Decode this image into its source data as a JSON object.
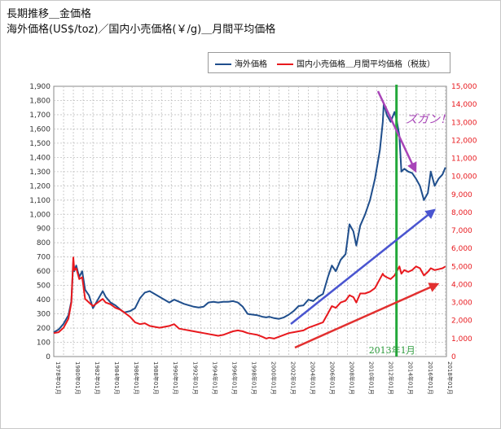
{
  "titles": {
    "line1": "長期推移＿金価格",
    "line2": "海外価格(US$/toz)／国内小売価格(￥/g)＿月間平均価格"
  },
  "legend": [
    {
      "label": "海外価格",
      "color": "#1f4e8c"
    },
    {
      "label": "国内小売価格＿月間平均価格（税抜）",
      "color": "#e8191e"
    }
  ],
  "annotations": {
    "zugan": "ズガン！",
    "marker_label": "2013年1月"
  },
  "colors": {
    "overseas": "#1f4e8c",
    "domestic": "#e8191e",
    "marker": "#22a83a",
    "arrow_blue": "#4a55d0",
    "arrow_red": "#e23030",
    "arrow_purple": "#a845b8",
    "grid": "#c0c0c0"
  },
  "chart_data": {
    "type": "line",
    "x_tick_labels": [
      "1978年01月",
      "1980年01月",
      "1982年01月",
      "1984年01月",
      "1986年01月",
      "1988年01月",
      "1990年01月",
      "1992年01月",
      "1994年01月",
      "1996年01月",
      "1998年01月",
      "2000年01月",
      "2002年01月",
      "2004年01月",
      "2006年01月",
      "2008年01月",
      "2010年01月",
      "2012年01月",
      "2014年01月",
      "2016年01月",
      "2018年01月"
    ],
    "xlim": [
      1978.0,
      2018.1
    ],
    "y_left": {
      "ylim": [
        0,
        1900
      ],
      "ticks": [
        0,
        100,
        200,
        300,
        400,
        500,
        600,
        700,
        800,
        900,
        "1,000",
        "1,100",
        "1,200",
        "1,300",
        "1,400",
        "1,500",
        "1,600",
        "1,700",
        "1,800",
        "1,900"
      ]
    },
    "y_right": {
      "ylim": [
        0,
        15000
      ],
      "ticks": [
        "0",
        "1,000",
        "2,000",
        "3,000",
        "4,000",
        "5,000",
        "6,000",
        "7,000",
        "8,000",
        "9,000",
        "10,000",
        "11,000",
        "12,000",
        "13,000",
        "14,000",
        "15,000"
      ]
    },
    "series": [
      {
        "axis": "left",
        "x": [
          1978.0,
          1978.5,
          1979.0,
          1979.5,
          1979.8,
          1980.0,
          1980.1,
          1980.3,
          1980.6,
          1980.9,
          1981.2,
          1981.6,
          1982.0,
          1982.5,
          1983.0,
          1983.3,
          1983.8,
          1984.3,
          1984.8,
          1985.2,
          1985.8,
          1986.3,
          1986.8,
          1987.3,
          1987.8,
          1988.3,
          1988.8,
          1989.3,
          1989.8,
          1990.3,
          1990.8,
          1991.3,
          1991.8,
          1992.3,
          1992.8,
          1993.3,
          1993.8,
          1994.3,
          1994.8,
          1995.3,
          1995.8,
          1996.3,
          1996.8,
          1997.3,
          1997.8,
          1998.3,
          1998.8,
          1999.3,
          1999.7,
          2000.0,
          2000.5,
          2001.0,
          2001.5,
          2002.0,
          2002.5,
          2003.0,
          2003.5,
          2004.0,
          2004.5,
          2005.0,
          2005.5,
          2006.0,
          2006.4,
          2006.8,
          2007.3,
          2007.8,
          2008.2,
          2008.6,
          2008.9,
          2009.3,
          2009.8,
          2010.3,
          2010.8,
          2011.3,
          2011.6,
          2011.7,
          2012.0,
          2012.4,
          2012.8,
          2013.0,
          2013.3,
          2013.5,
          2013.8,
          2014.2,
          2014.6,
          2015.0,
          2015.4,
          2015.8,
          2016.2,
          2016.5,
          2016.9,
          2017.3,
          2017.7,
          2018.0
        ],
        "y": [
          170,
          190,
          230,
          290,
          390,
          670,
          600,
          640,
          560,
          600,
          470,
          430,
          340,
          400,
          460,
          420,
          380,
          360,
          330,
          310,
          320,
          340,
          410,
          450,
          460,
          440,
          420,
          400,
          380,
          400,
          385,
          370,
          360,
          350,
          345,
          350,
          380,
          385,
          380,
          385,
          385,
          390,
          380,
          350,
          300,
          295,
          290,
          280,
          275,
          280,
          270,
          265,
          275,
          295,
          320,
          355,
          360,
          400,
          390,
          420,
          440,
          560,
          640,
          600,
          680,
          720,
          930,
          880,
          780,
          920,
          1000,
          1100,
          1250,
          1450,
          1650,
          1780,
          1700,
          1650,
          1720,
          1670,
          1550,
          1300,
          1320,
          1300,
          1290,
          1250,
          1200,
          1100,
          1150,
          1300,
          1200,
          1250,
          1280,
          1330
        ]
      },
      {
        "axis": "right",
        "x": [
          1978.0,
          1978.5,
          1979.0,
          1979.5,
          1979.8,
          1980.0,
          1980.1,
          1980.3,
          1980.6,
          1980.9,
          1981.2,
          1981.6,
          1982.0,
          1982.5,
          1983.0,
          1983.3,
          1983.8,
          1984.3,
          1984.8,
          1985.2,
          1985.8,
          1986.3,
          1986.8,
          1987.3,
          1987.8,
          1988.3,
          1988.8,
          1989.3,
          1989.8,
          1990.3,
          1990.8,
          1991.3,
          1991.8,
          1992.3,
          1992.8,
          1993.3,
          1993.8,
          1994.3,
          1994.8,
          1995.3,
          1995.8,
          1996.3,
          1996.8,
          1997.3,
          1997.8,
          1998.3,
          1998.8,
          1999.3,
          1999.7,
          2000.0,
          2000.5,
          2001.0,
          2001.5,
          2002.0,
          2002.5,
          2003.0,
          2003.5,
          2004.0,
          2004.5,
          2005.0,
          2005.5,
          2006.0,
          2006.4,
          2006.8,
          2007.3,
          2007.8,
          2008.2,
          2008.6,
          2008.9,
          2009.3,
          2009.8,
          2010.3,
          2010.8,
          2011.3,
          2011.6,
          2011.7,
          2012.0,
          2012.4,
          2012.8,
          2013.0,
          2013.3,
          2013.5,
          2013.8,
          2014.2,
          2014.6,
          2015.0,
          2015.4,
          2015.8,
          2016.2,
          2016.5,
          2016.9,
          2017.3,
          2017.7,
          2018.0
        ],
        "y": [
          1300,
          1350,
          1600,
          2100,
          3000,
          5500,
          4800,
          4900,
          4300,
          4400,
          3200,
          3000,
          2800,
          3000,
          3200,
          3000,
          2900,
          2700,
          2600,
          2450,
          2200,
          1900,
          1800,
          1850,
          1700,
          1650,
          1600,
          1650,
          1700,
          1800,
          1550,
          1500,
          1450,
          1400,
          1350,
          1300,
          1250,
          1200,
          1150,
          1200,
          1300,
          1400,
          1450,
          1400,
          1300,
          1250,
          1200,
          1100,
          1000,
          1050,
          1000,
          1100,
          1200,
          1300,
          1350,
          1400,
          1450,
          1600,
          1700,
          1800,
          1900,
          2400,
          2800,
          2700,
          3000,
          3100,
          3400,
          3300,
          3000,
          3500,
          3500,
          3600,
          3800,
          4300,
          4600,
          4500,
          4400,
          4300,
          4500,
          4700,
          5000,
          4600,
          4800,
          4700,
          4800,
          5000,
          4900,
          4500,
          4700,
          4900,
          4800,
          4850,
          4900,
          5000
        ]
      }
    ]
  }
}
